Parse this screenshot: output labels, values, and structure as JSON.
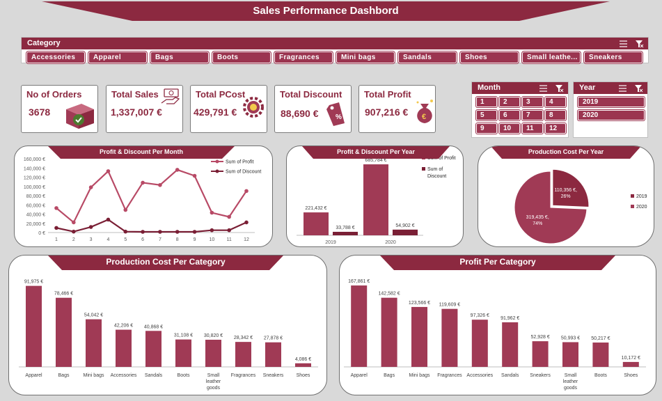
{
  "dashboard": {
    "title": "Sales Performance Dashbord"
  },
  "colors": {
    "accent": "#8c2940",
    "bar": "#a03a55",
    "button": "#9b3550",
    "discount_line": "#7a1f35",
    "profit_line": "#b84a66"
  },
  "category_slicer": {
    "title": "Category",
    "icons": [
      "multi-select-icon",
      "clear-filter-icon"
    ],
    "items": [
      "Accessories",
      "Apparel",
      "Bags",
      "Boots",
      "Fragrances",
      "Mini bags",
      "Sandals",
      "Shoes",
      "Small leathe...",
      "Sneakers"
    ]
  },
  "kpis": [
    {
      "label": "No of Orders",
      "value": "3678",
      "icon": "box-check-icon"
    },
    {
      "label": "Total Sales",
      "value": "1,337,007 €",
      "icon": "money-hand-icon"
    },
    {
      "label": "Total PCost",
      "value": "429,791 €",
      "icon": "gear-money-icon"
    },
    {
      "label": "Total Discount",
      "value": "88,690 €",
      "icon": "price-tag-icon"
    },
    {
      "label": "Total Profit",
      "value": "907,216 €",
      "icon": "money-bag-icon"
    }
  ],
  "month_slicer": {
    "title": "Month",
    "items": [
      "1",
      "2",
      "3",
      "4",
      "5",
      "6",
      "7",
      "8",
      "9",
      "10",
      "11",
      "12"
    ]
  },
  "year_slicer": {
    "title": "Year",
    "items": [
      "2019",
      "2020"
    ]
  },
  "chart_data": [
    {
      "id": "profit_discount_month",
      "type": "line",
      "title": "Profit & Discount Per Month",
      "x": [
        1,
        2,
        3,
        4,
        5,
        6,
        7,
        8,
        9,
        10,
        11,
        12
      ],
      "x_tick_labels": [
        "1",
        "2",
        "3",
        "4",
        "5",
        "6",
        "7",
        "8",
        "9",
        "10",
        "11",
        "12"
      ],
      "series": [
        {
          "name": "Sum of Profit",
          "values": [
            53000,
            22000,
            98000,
            133000,
            49000,
            108000,
            103000,
            136000,
            123000,
            43000,
            34000,
            90000
          ]
        },
        {
          "name": "Sum of Discount",
          "values": [
            10000,
            2000,
            12000,
            28000,
            2000,
            1500,
            1500,
            1500,
            1500,
            5000,
            5000,
            22000
          ]
        }
      ],
      "ylim": [
        0,
        160000
      ],
      "y_ticks": [
        0,
        20000,
        40000,
        60000,
        80000,
        100000,
        120000,
        140000,
        160000
      ],
      "y_tick_labels": [
        "0 €",
        "20,000 €",
        "40,000 €",
        "60,000 €",
        "80,000 €",
        "100,000 €",
        "120,000 €",
        "140,000 €",
        "160,000 €"
      ],
      "legend": "top-right",
      "grid": false
    },
    {
      "id": "profit_discount_year",
      "type": "bar",
      "title": "Profit & Discount Per Year",
      "categories": [
        "2019",
        "2020"
      ],
      "series": [
        {
          "name": "Sum of Profit",
          "values": [
            221432,
            685784
          ],
          "labels": [
            "221,432 €",
            "685,784 €"
          ]
        },
        {
          "name": "Sum of Discount",
          "values": [
            33788,
            54902
          ],
          "labels": [
            "33,788 €",
            "54,902 €"
          ]
        }
      ],
      "ylim": [
        0,
        740000
      ],
      "legend": "right",
      "grid": false
    },
    {
      "id": "production_cost_year",
      "type": "pie",
      "title": "Production Cost Per Year",
      "categories": [
        "2019",
        "2020"
      ],
      "values": [
        110356,
        319435
      ],
      "labels": [
        "110,356 €, 26%",
        "319,435 €, 74%"
      ],
      "legend": "right"
    },
    {
      "id": "production_cost_category",
      "type": "bar",
      "title": "Production Cost Per Category",
      "categories": [
        "Apparel",
        "Bags",
        "Mini bags",
        "Accessories",
        "Sandals",
        "Boots",
        "Small leather goods",
        "Fragrances",
        "Sneakers",
        "Shoes"
      ],
      "values": [
        91975,
        78466,
        54042,
        42206,
        40868,
        31108,
        30820,
        28342,
        27878,
        4086
      ],
      "labels": [
        "91,975 €",
        "78,466 €",
        "54,042 €",
        "42,206 €",
        "40,868 €",
        "31,108 €",
        "30,820 €",
        "28,342 €",
        "27,878 €",
        "4,086 €"
      ],
      "ylim": [
        0,
        98000
      ],
      "grid": false
    },
    {
      "id": "profit_category",
      "type": "bar",
      "title": "Profit Per Category",
      "categories": [
        "Apparel",
        "Bags",
        "Mini bags",
        "Fragrances",
        "Accessories",
        "Sandals",
        "Sneakers",
        "Small leather goods",
        "Boots",
        "Shoes"
      ],
      "values": [
        167861,
        142582,
        123566,
        119609,
        97326,
        91962,
        52928,
        50993,
        50217,
        10172
      ],
      "labels": [
        "167,861 €",
        "142,582 €",
        "123,566 €",
        "119,609 €",
        "97,326 €",
        "91,962 €",
        "52,928 €",
        "50,993 €",
        "50,217 €",
        "10,172 €"
      ],
      "ylim": [
        0,
        178000
      ],
      "grid": false
    }
  ]
}
